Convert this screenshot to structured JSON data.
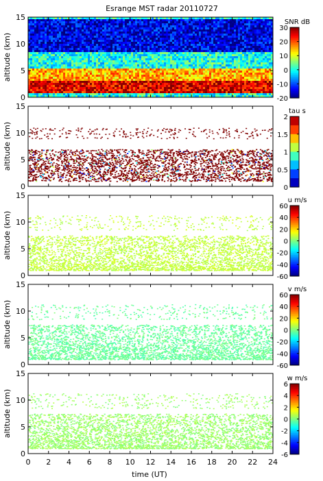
{
  "chart_data": {
    "type": "heatmap",
    "title": "Esrange MST radar 20110727",
    "xlabel": "time (UT)",
    "x_ticks": [
      "0",
      "2",
      "4",
      "6",
      "8",
      "10",
      "12",
      "14",
      "16",
      "18",
      "20",
      "22",
      "24"
    ],
    "xlim": [
      0,
      24
    ],
    "grid": false,
    "panels": [
      {
        "ylabel": "altitude (km)",
        "ylim": [
          0,
          15
        ],
        "y_ticks": [
          "0",
          "5",
          "10",
          "15"
        ],
        "colorbar_label": "SNR dB",
        "clim": [
          -20,
          30
        ],
        "colorbar_ticks": [
          "30",
          "20",
          "10",
          "0",
          "-10",
          "-20"
        ],
        "colorscale": "jet",
        "mode": "snr",
        "layers": [
          {
            "description": "strongest echoes",
            "alt_km": [
              1.0,
              3.2
            ],
            "approx_value_db": 25
          },
          {
            "description": "strong layer",
            "alt_km": [
              3.2,
              5.5
            ],
            "approx_value_db": 15
          },
          {
            "description": "moderate layer",
            "alt_km": [
              5.5,
              8.5
            ],
            "approx_value_db": 0
          },
          {
            "description": "weak background",
            "alt_km": [
              8.5,
              15
            ],
            "approx_value_db": -15
          }
        ]
      },
      {
        "ylabel": "altitude (km)",
        "ylim": [
          0,
          15
        ],
        "y_ticks": [
          "0",
          "5",
          "10",
          "15"
        ],
        "colorbar_label": "tau s",
        "clim": [
          0,
          2
        ],
        "colorbar_ticks": [
          "2",
          "1.5",
          "1",
          "0.5",
          "0"
        ],
        "colorscale": "discrete-jet",
        "mode": "tau",
        "typical_value": 2,
        "data_alt_km": [
          1.0,
          7.0
        ],
        "sparse_alt_km": [
          9.0,
          11.0
        ]
      },
      {
        "ylabel": "altitude (km)",
        "ylim": [
          0,
          15
        ],
        "y_ticks": [
          "0",
          "5",
          "10",
          "15"
        ],
        "colorbar_label": "u m/s",
        "clim": [
          -60,
          60
        ],
        "colorbar_ticks": [
          "60",
          "40",
          "20",
          "0",
          "-20",
          "-40",
          "-60"
        ],
        "colorscale": "jet",
        "mode": "wind",
        "typical_value": 8
      },
      {
        "ylabel": "altitude (km)",
        "ylim": [
          0,
          15
        ],
        "y_ticks": [
          "0",
          "5",
          "10",
          "15"
        ],
        "colorbar_label": "v m/s",
        "clim": [
          -60,
          60
        ],
        "colorbar_ticks": [
          "60",
          "40",
          "20",
          "0",
          "-20",
          "-40",
          "-60"
        ],
        "colorscale": "jet",
        "mode": "wind",
        "typical_value": -3
      },
      {
        "ylabel": "altitude (km)",
        "ylim": [
          0,
          15
        ],
        "y_ticks": [
          "0",
          "5",
          "10",
          "15"
        ],
        "colorbar_label": "w m/s",
        "clim": [
          -6,
          6
        ],
        "colorbar_ticks": [
          "6",
          "4",
          "2",
          "0",
          "-2",
          "-4",
          "-6"
        ],
        "colorscale": "jet",
        "mode": "w",
        "typical_value": 0.3
      }
    ]
  }
}
